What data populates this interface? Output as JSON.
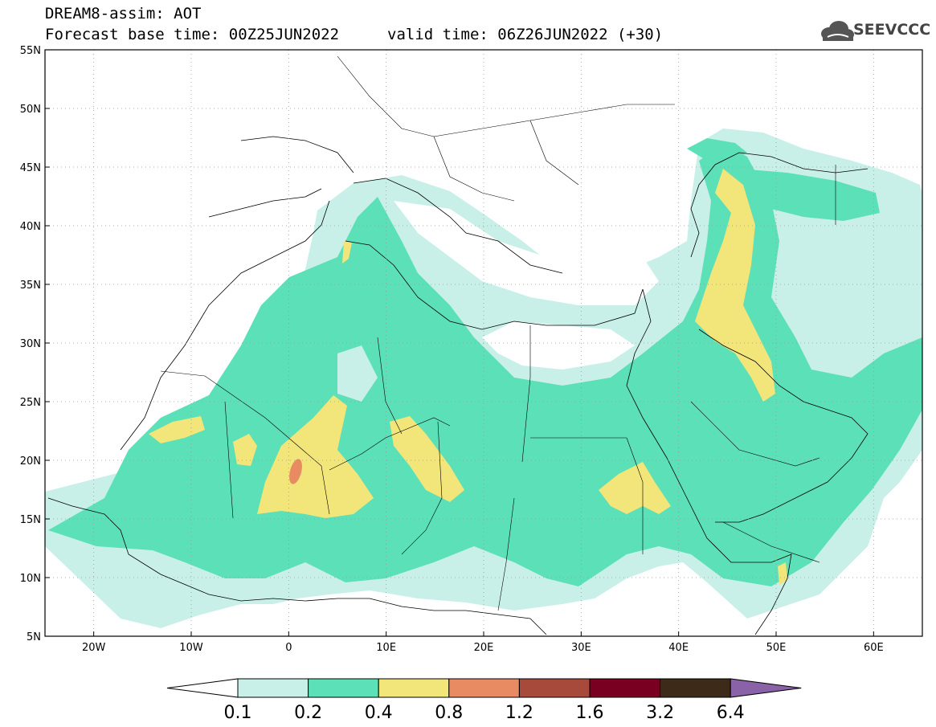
{
  "header": {
    "title": "DREAM8-assim: AOT",
    "base_time": "Forecast base time: 00Z25JUN2022",
    "valid_time": "valid time: 06Z26JUN2022 (+30)"
  },
  "logo": {
    "text": "SEEVCCC",
    "icon": "cloud-icon"
  },
  "map": {
    "lon_range": [
      -25,
      65
    ],
    "lat_range": [
      5,
      55
    ],
    "lat_ticks": [
      {
        "value": 55,
        "label": "55N"
      },
      {
        "value": 50,
        "label": "50N"
      },
      {
        "value": 45,
        "label": "45N"
      },
      {
        "value": 40,
        "label": "40N"
      },
      {
        "value": 35,
        "label": "35N"
      },
      {
        "value": 30,
        "label": "30N"
      },
      {
        "value": 25,
        "label": "25N"
      },
      {
        "value": 20,
        "label": "20N"
      },
      {
        "value": 15,
        "label": "15N"
      },
      {
        "value": 10,
        "label": "10N"
      },
      {
        "value": 5,
        "label": "5N"
      }
    ],
    "lon_ticks": [
      {
        "value": -20,
        "label": "20W"
      },
      {
        "value": -10,
        "label": "10W"
      },
      {
        "value": 0,
        "label": "0"
      },
      {
        "value": 10,
        "label": "10E"
      },
      {
        "value": 20,
        "label": "20E"
      },
      {
        "value": 30,
        "label": "30E"
      },
      {
        "value": 40,
        "label": "40E"
      },
      {
        "value": 50,
        "label": "50E"
      },
      {
        "value": 60,
        "label": "60E"
      }
    ],
    "grid": true,
    "colors": {
      "c01": "#c8f0e8",
      "c02": "#5ce0b8",
      "c04": "#f2e57a",
      "c08": "#e88a62",
      "c12": "#a74a3c",
      "c16": "#7a0022",
      "c32": "#3d2a18",
      "c64": "#8a62a8"
    }
  },
  "colorbar": {
    "labels": [
      "0.1",
      "0.2",
      "0.4",
      "0.8",
      "1.2",
      "1.6",
      "3.2",
      "6.4"
    ],
    "colors": [
      "#c8f0e8",
      "#5ce0b8",
      "#f2e57a",
      "#e88a62",
      "#a74a3c",
      "#7a0022",
      "#3d2a18"
    ],
    "under_color": "#ffffff",
    "over_color": "#8a62a8"
  }
}
